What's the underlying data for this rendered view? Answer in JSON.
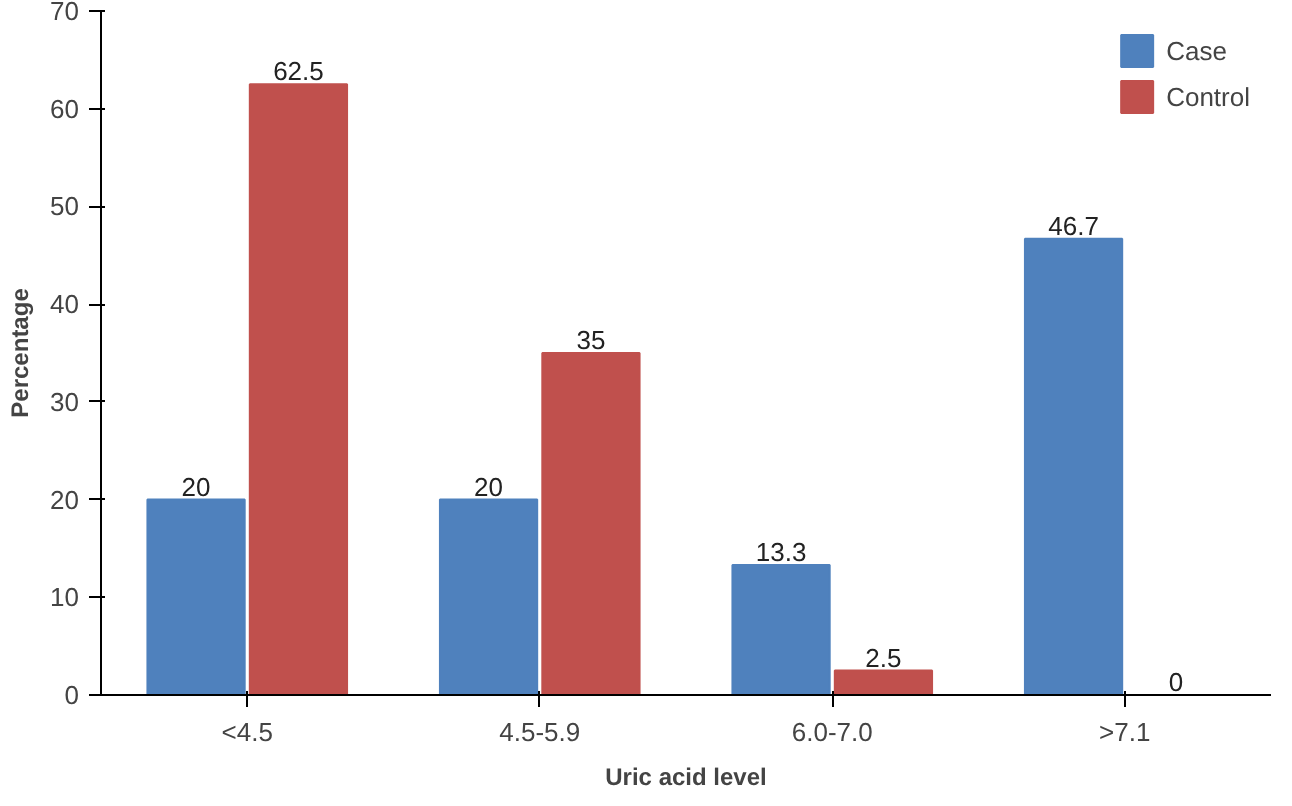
{
  "chart_data": {
    "type": "bar",
    "xlabel": "Uric acid level",
    "ylabel": "Percentage",
    "categories": [
      "<4.5",
      "4.5-5.9",
      "6.0-7.0",
      ">7.1"
    ],
    "series": [
      {
        "name": "Case",
        "color": "#4f81bd",
        "values": [
          20,
          20,
          13.3,
          46.7
        ]
      },
      {
        "name": "Control",
        "color": "#c0504d",
        "values": [
          62.5,
          35,
          2.5,
          0
        ]
      }
    ],
    "ylim": [
      0,
      70
    ],
    "yticks": [
      0,
      10,
      20,
      30,
      40,
      50,
      60,
      70
    ],
    "data_labels": true,
    "legend": "top right",
    "grid": false
  }
}
